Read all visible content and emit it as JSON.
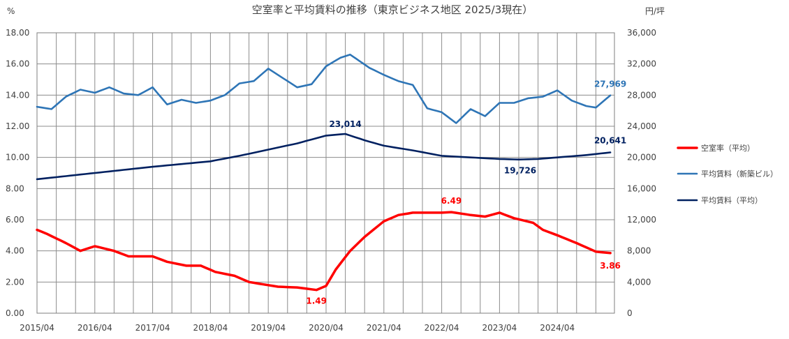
{
  "chart_data": {
    "type": "line",
    "title": "空室率と平均賃料の推移（東京ビジネス地区 2025/3現在）",
    "y_left_unit": "%",
    "y_right_unit": "円/坪",
    "y_left_lim": [
      0,
      18
    ],
    "y_right_lim": [
      0,
      36000
    ],
    "y_left_ticks": [
      "0.00",
      "2.00",
      "4.00",
      "6.00",
      "8.00",
      "10.00",
      "12.00",
      "14.00",
      "16.00",
      "18.00"
    ],
    "y_right_ticks": [
      "0",
      "4,000",
      "8,000",
      "12,000",
      "16,000",
      "20,000",
      "24,000",
      "28,000",
      "32,000",
      "36,000"
    ],
    "x_ticks": [
      "2015/04",
      "2016/04",
      "2017/04",
      "2018/04",
      "2019/04",
      "2020/04",
      "2021/04",
      "2022/04",
      "2023/04",
      "2024/04"
    ],
    "x_start": "2015/04",
    "x_end": "2025/03",
    "grid": true,
    "legend_position": "right",
    "series": [
      {
        "name": "空室率（平均）",
        "axis": "left",
        "color": "#ff0000",
        "knots": [
          [
            "2015/04",
            5.35
          ],
          [
            "2015/06",
            5.1
          ],
          [
            "2015/10",
            4.5
          ],
          [
            "2016/01",
            4.0
          ],
          [
            "2016/04",
            4.3
          ],
          [
            "2016/08",
            4.0
          ],
          [
            "2016/11",
            3.65
          ],
          [
            "2017/04",
            3.65
          ],
          [
            "2017/07",
            3.3
          ],
          [
            "2017/11",
            3.05
          ],
          [
            "2018/02",
            3.05
          ],
          [
            "2018/05",
            2.65
          ],
          [
            "2018/09",
            2.4
          ],
          [
            "2018/12",
            2.0
          ],
          [
            "2019/03",
            1.85
          ],
          [
            "2019/06",
            1.7
          ],
          [
            "2019/10",
            1.65
          ],
          [
            "2020/02",
            1.49
          ],
          [
            "2020/04",
            1.75
          ],
          [
            "2020/06",
            2.8
          ],
          [
            "2020/09",
            4.0
          ],
          [
            "2020/12",
            4.9
          ],
          [
            "2021/04",
            5.9
          ],
          [
            "2021/07",
            6.3
          ],
          [
            "2021/10",
            6.45
          ],
          [
            "2022/04",
            6.45
          ],
          [
            "2022/06",
            6.49
          ],
          [
            "2022/10",
            6.3
          ],
          [
            "2023/01",
            6.2
          ],
          [
            "2023/04",
            6.45
          ],
          [
            "2023/07",
            6.1
          ],
          [
            "2023/11",
            5.8
          ],
          [
            "2024/01",
            5.35
          ],
          [
            "2024/04",
            5.0
          ],
          [
            "2024/08",
            4.5
          ],
          [
            "2024/12",
            3.95
          ],
          [
            "2025/03",
            3.86
          ]
        ]
      },
      {
        "name": "平均賃料（新築ビル）",
        "axis": "right",
        "color": "#2e75b6",
        "knots": [
          [
            "2015/04",
            26500
          ],
          [
            "2015/07",
            26200
          ],
          [
            "2015/10",
            27800
          ],
          [
            "2016/01",
            28700
          ],
          [
            "2016/04",
            28300
          ],
          [
            "2016/07",
            29000
          ],
          [
            "2016/10",
            28200
          ],
          [
            "2017/01",
            28000
          ],
          [
            "2017/04",
            29000
          ],
          [
            "2017/07",
            26800
          ],
          [
            "2017/10",
            27400
          ],
          [
            "2018/01",
            27000
          ],
          [
            "2018/04",
            27300
          ],
          [
            "2018/07",
            28000
          ],
          [
            "2018/10",
            29500
          ],
          [
            "2019/01",
            29800
          ],
          [
            "2019/04",
            31400
          ],
          [
            "2019/07",
            30200
          ],
          [
            "2019/10",
            29000
          ],
          [
            "2020/01",
            29400
          ],
          [
            "2020/04",
            31700
          ],
          [
            "2020/07",
            32800
          ],
          [
            "2020/09",
            33200
          ],
          [
            "2021/01",
            31500
          ],
          [
            "2021/04",
            30600
          ],
          [
            "2021/07",
            29800
          ],
          [
            "2021/10",
            29300
          ],
          [
            "2022/01",
            26300
          ],
          [
            "2022/04",
            25800
          ],
          [
            "2022/07",
            24400
          ],
          [
            "2022/10",
            26200
          ],
          [
            "2023/01",
            25300
          ],
          [
            "2023/04",
            27000
          ],
          [
            "2023/07",
            27000
          ],
          [
            "2023/10",
            27600
          ],
          [
            "2024/01",
            27800
          ],
          [
            "2024/04",
            28600
          ],
          [
            "2024/07",
            27300
          ],
          [
            "2024/10",
            26600
          ],
          [
            "2024/12",
            26400
          ],
          [
            "2025/03",
            27969
          ]
        ]
      },
      {
        "name": "平均賃料（平均）",
        "axis": "right",
        "color": "#002060",
        "knots": [
          [
            "2015/04",
            17200
          ],
          [
            "2016/04",
            18000
          ],
          [
            "2017/04",
            18800
          ],
          [
            "2018/04",
            19500
          ],
          [
            "2018/10",
            20200
          ],
          [
            "2019/04",
            21000
          ],
          [
            "2019/10",
            21800
          ],
          [
            "2020/04",
            22800
          ],
          [
            "2020/08",
            23014
          ],
          [
            "2020/12",
            22200
          ],
          [
            "2021/04",
            21500
          ],
          [
            "2021/10",
            20900
          ],
          [
            "2022/04",
            20200
          ],
          [
            "2022/10",
            20000
          ],
          [
            "2023/04",
            19800
          ],
          [
            "2023/08",
            19726
          ],
          [
            "2023/12",
            19800
          ],
          [
            "2024/04",
            20000
          ],
          [
            "2024/10",
            20300
          ],
          [
            "2025/03",
            20641
          ]
        ]
      }
    ],
    "annotations": [
      {
        "text": "1.49",
        "series": 0,
        "x": "2020/02",
        "value": 1.49
      },
      {
        "text": "6.49",
        "series": 0,
        "x": "2022/06",
        "value": 6.49
      },
      {
        "text": "3.86",
        "series": 0,
        "x": "2025/03",
        "value": 3.86
      },
      {
        "text": "27,969",
        "series": 1,
        "x": "2025/03",
        "value": 27969
      },
      {
        "text": "23,014",
        "series": 2,
        "x": "2020/08",
        "value": 23014
      },
      {
        "text": "19,726",
        "series": 2,
        "x": "2023/08",
        "value": 19726
      },
      {
        "text": "20,641",
        "series": 2,
        "x": "2025/03",
        "value": 20641
      }
    ]
  }
}
